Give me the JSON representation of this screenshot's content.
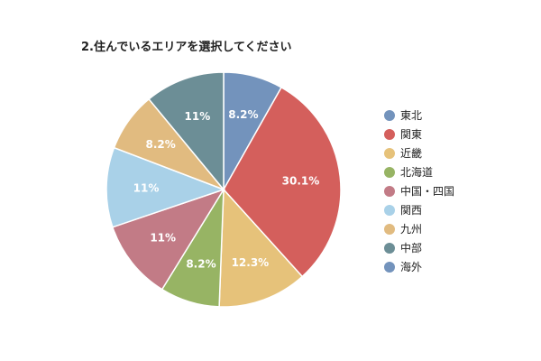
{
  "chart_data": {
    "type": "pie",
    "title": "2.住んでいるエリアを選択してください",
    "categories": [
      "東北",
      "関東",
      "近畿",
      "北海道",
      "中国・四国",
      "関西",
      "九州",
      "中部",
      "海外"
    ],
    "values": [
      8.2,
      30.1,
      12.3,
      8.2,
      11,
      11,
      8.2,
      11,
      0
    ],
    "labels": [
      "8.2%",
      "30.1%",
      "12.3%",
      "8.2%",
      "11%",
      "11%",
      "8.2%",
      "11%",
      ""
    ],
    "colors": [
      "#7393bc",
      "#d45f5c",
      "#e6c27a",
      "#97b464",
      "#c27b86",
      "#a9d1e8",
      "#e1bb80",
      "#6c8e96",
      "#7393bc"
    ],
    "legend_position": "right"
  }
}
